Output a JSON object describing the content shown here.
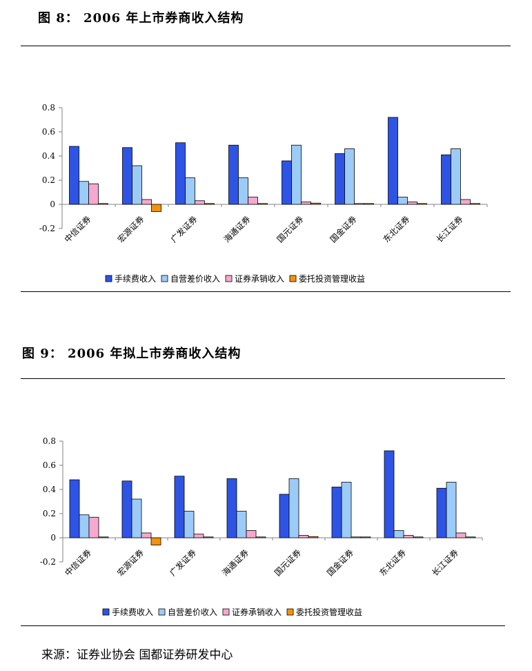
{
  "figure1": {
    "title": "图 8： 2006 年上市券商收入结构"
  },
  "figure2": {
    "title": "图 9：  2006 年拟上市券商收入结构"
  },
  "source": "来源：证券业协会 国都证券研发中心",
  "colors": {
    "series": [
      "#2E54E6",
      "#9CCBF7",
      "#F7A8CF",
      "#F5920A"
    ],
    "axis": "#808080"
  },
  "chart_data": [
    {
      "type": "bar",
      "title": "",
      "categories": [
        "中信证券",
        "宏源证券",
        "广发证券",
        "海通证券",
        "国元证券",
        "国金证券",
        "东北证券",
        "长江证券"
      ],
      "series": [
        {
          "name": "手续费收入",
          "values": [
            0.48,
            0.47,
            0.51,
            0.49,
            0.36,
            0.42,
            0.72,
            0.41
          ]
        },
        {
          "name": "自营差价收入",
          "values": [
            0.19,
            0.32,
            0.22,
            0.22,
            0.49,
            0.46,
            0.06,
            0.46
          ]
        },
        {
          "name": "证券承销收入",
          "values": [
            0.17,
            0.04,
            0.03,
            0.06,
            0.02,
            0.0,
            0.02,
            0.04
          ]
        },
        {
          "name": "委托投资管理收益",
          "values": [
            0.005,
            -0.06,
            0.005,
            0.005,
            0.01,
            0.005,
            0.0,
            0.005
          ]
        }
      ],
      "yticks": [
        "0.8",
        "0.6",
        "0.4",
        "0.2",
        "0",
        "-0.2"
      ],
      "ylim": [
        -0.2,
        0.8
      ],
      "grid": false,
      "legend": "bottom"
    },
    {
      "type": "bar",
      "title": "",
      "categories": [
        "中信证券",
        "宏源证券",
        "广发证券",
        "海通证券",
        "国元证券",
        "国金证券",
        "东北证券",
        "长江证券"
      ],
      "series": [
        {
          "name": "手续费收入",
          "values": [
            0.48,
            0.47,
            0.51,
            0.49,
            0.36,
            0.42,
            0.72,
            0.41
          ]
        },
        {
          "name": "自营差价收入",
          "values": [
            0.19,
            0.32,
            0.22,
            0.22,
            0.49,
            0.46,
            0.06,
            0.46
          ]
        },
        {
          "name": "证券承销收入",
          "values": [
            0.17,
            0.04,
            0.03,
            0.06,
            0.02,
            0.0,
            0.02,
            0.04
          ]
        },
        {
          "name": "委托投资管理收益",
          "values": [
            0.005,
            -0.06,
            0.005,
            0.005,
            0.01,
            0.005,
            0.0,
            0.005
          ]
        }
      ],
      "yticks": [
        "0.8",
        "0.6",
        "0.4",
        "0.2",
        "0",
        "-0.2"
      ],
      "ylim": [
        -0.2,
        0.8
      ],
      "grid": false,
      "legend": "bottom"
    }
  ]
}
